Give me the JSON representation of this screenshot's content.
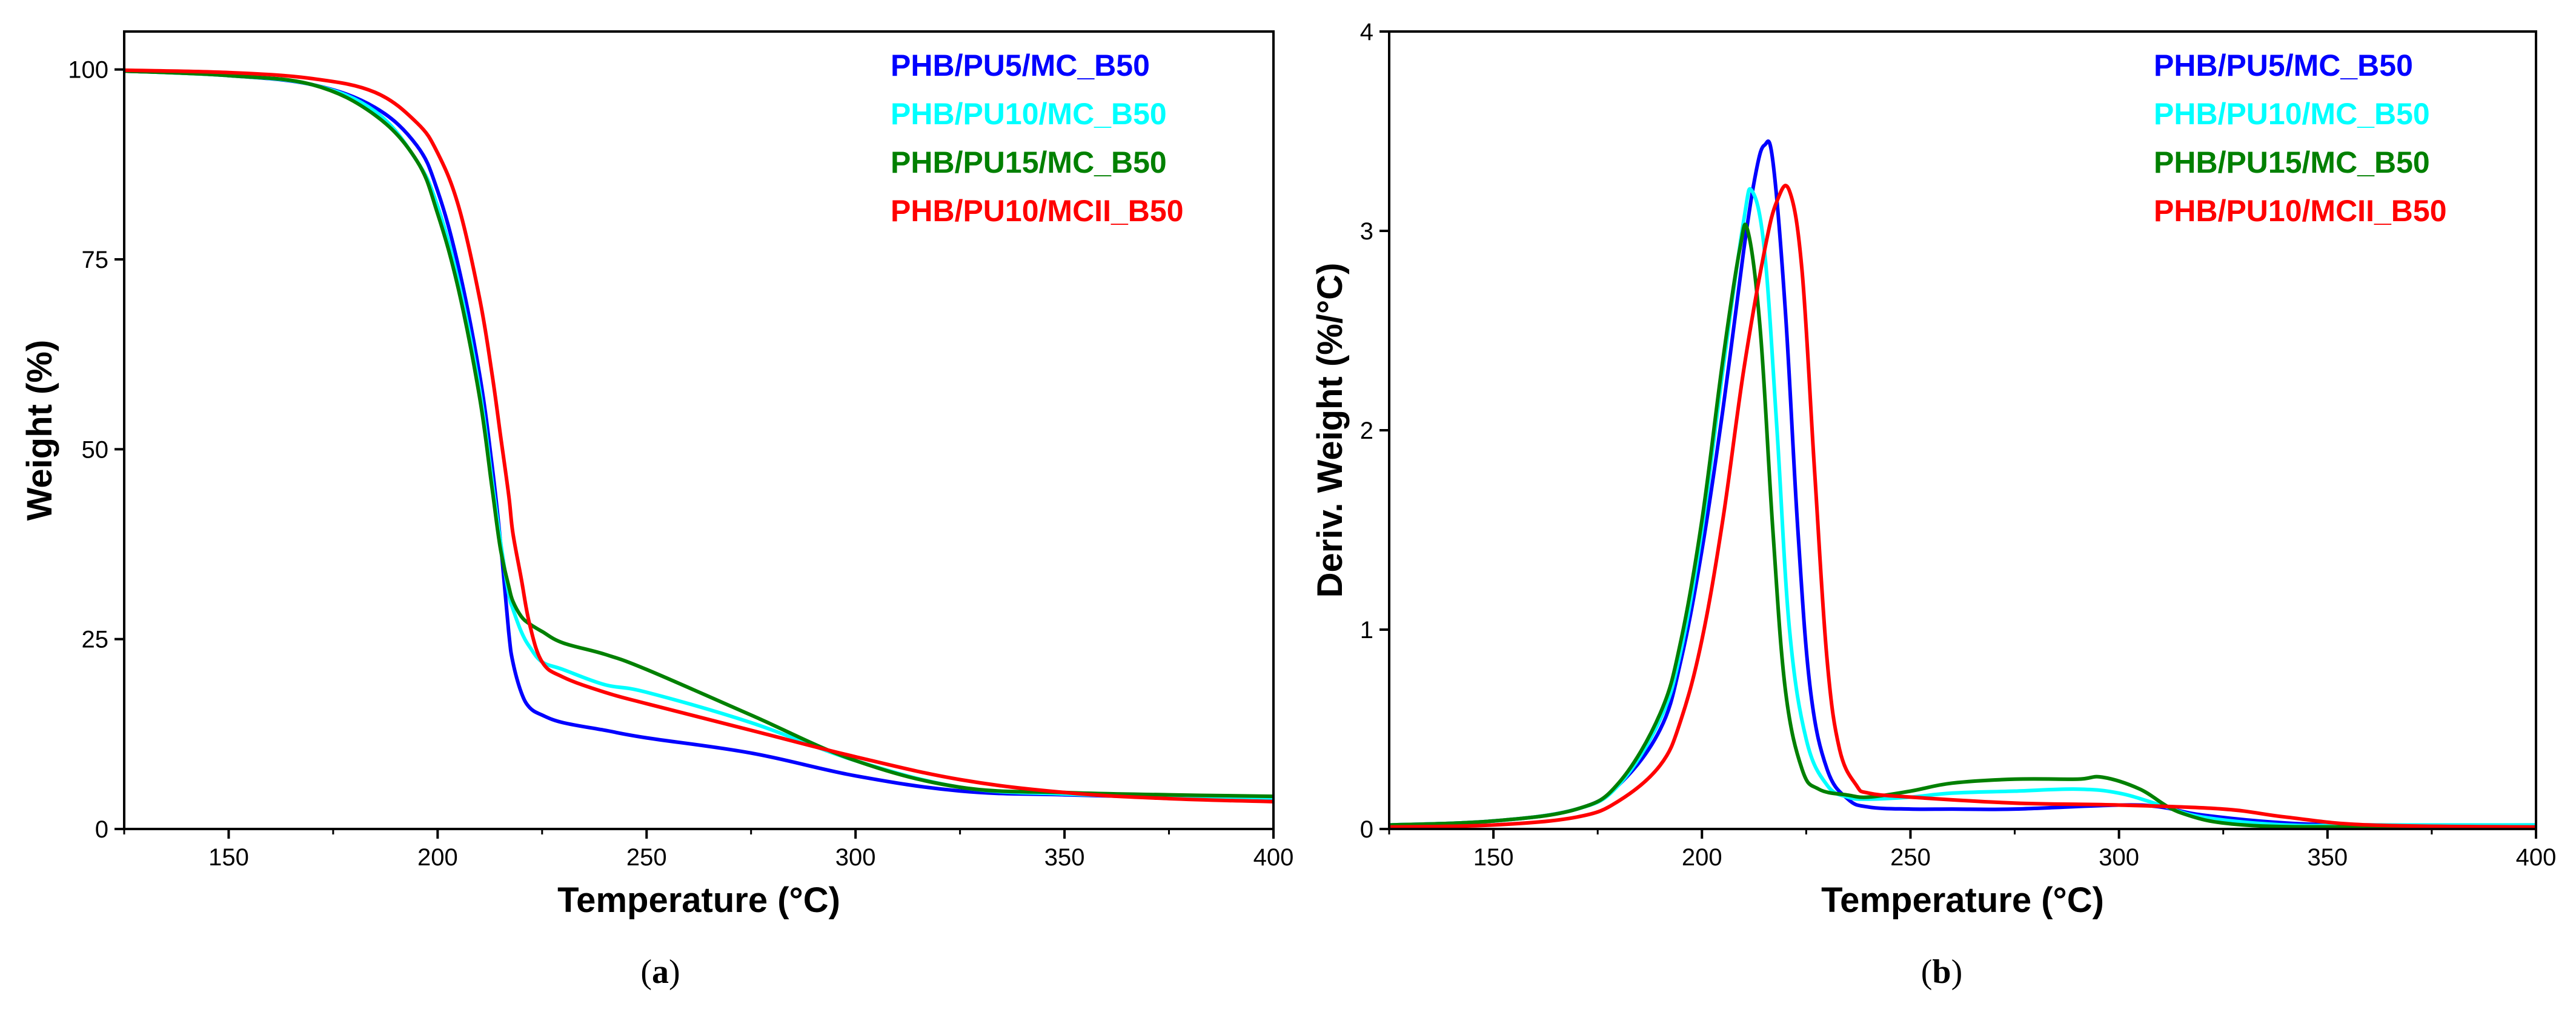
{
  "chart_data": [
    {
      "type": "line",
      "panel_label": {
        "open": "(",
        "letter": "a",
        "close": ")"
      },
      "title": "",
      "xlabel": "Temperature (°C)",
      "ylabel": "Weight (%)",
      "xlim": [
        125,
        400
      ],
      "ylim": [
        0,
        105
      ],
      "xticks": [
        150,
        200,
        250,
        300,
        350,
        400
      ],
      "yticks": [
        0,
        25,
        50,
        75,
        100
      ],
      "grid": false,
      "legend_position": "top-right",
      "series": [
        {
          "name": "PHB/PU5/MC_B50",
          "color": "#0000ff",
          "x": [
            125,
            150,
            170,
            185,
            195,
            200,
            205,
            210,
            213,
            215,
            217,
            218,
            220,
            222,
            225,
            230,
            240,
            250,
            275,
            300,
            325,
            350,
            375,
            400
          ],
          "y": [
            99.8,
            99.2,
            98,
            95,
            90,
            84,
            74,
            60,
            48,
            38,
            26,
            22,
            18,
            16,
            15,
            14,
            13,
            12,
            10,
            7,
            5,
            4.5,
            4.2,
            4
          ]
        },
        {
          "name": "PHB/PU10/MC_B50",
          "color": "#00ffff",
          "x": [
            125,
            150,
            170,
            185,
            195,
            200,
            205,
            210,
            213,
            215,
            217,
            218,
            220,
            222,
            225,
            230,
            240,
            250,
            275,
            300,
            325,
            350,
            375,
            400
          ],
          "y": [
            99.8,
            99.2,
            98,
            94.5,
            88,
            82,
            72,
            58,
            46,
            38,
            31,
            29,
            26,
            24,
            22,
            21,
            19,
            18,
            14,
            9,
            5.5,
            4.6,
            4.3,
            4.1
          ]
        },
        {
          "name": "PHB/PU15/MC_B50",
          "color": "#008000",
          "x": [
            125,
            150,
            170,
            185,
            195,
            200,
            205,
            210,
            213,
            215,
            217,
            218,
            220,
            222,
            225,
            230,
            240,
            250,
            275,
            300,
            325,
            350,
            375,
            400
          ],
          "y": [
            99.8,
            99.2,
            98,
            94,
            88,
            81,
            71,
            57,
            45,
            37,
            32,
            30,
            28,
            27,
            26,
            24.5,
            23,
            21,
            15,
            9,
            5.5,
            4.8,
            4.5,
            4.3
          ]
        },
        {
          "name": "PHB/PU10/MCII_B50",
          "color": "#ff0000",
          "x": [
            125,
            150,
            170,
            185,
            195,
            200,
            205,
            210,
            213,
            215,
            217,
            218,
            220,
            222,
            225,
            230,
            240,
            250,
            275,
            300,
            325,
            350,
            375,
            400
          ],
          "y": [
            99.9,
            99.6,
            98.8,
            97,
            93,
            89,
            82,
            70,
            60,
            52,
            44,
            39,
            33,
            27,
            22,
            20,
            18,
            16.5,
            13,
            9.5,
            6.5,
            4.8,
            4,
            3.6
          ]
        }
      ]
    },
    {
      "type": "line",
      "panel_label": {
        "open": "(",
        "letter": "b",
        "close": ")"
      },
      "title": "",
      "xlabel": "Temperature (°C)",
      "ylabel": "Deriv. Weight (%/°C)",
      "xlim": [
        125,
        400
      ],
      "ylim": [
        0,
        4
      ],
      "xticks": [
        150,
        200,
        250,
        300,
        350,
        400
      ],
      "yticks": [
        0,
        1,
        2,
        3,
        4
      ],
      "grid": false,
      "legend_position": "top-right",
      "series": [
        {
          "name": "PHB/PU5/MC_B50",
          "color": "#0000ff",
          "x": [
            125,
            150,
            170,
            180,
            190,
            195,
            200,
            205,
            210,
            213,
            215,
            217,
            220,
            223,
            226,
            230,
            235,
            240,
            250,
            260,
            275,
            300,
            310,
            320,
            340,
            360,
            400
          ],
          "y": [
            0.02,
            0.04,
            0.1,
            0.22,
            0.5,
            0.85,
            1.4,
            2.1,
            2.9,
            3.3,
            3.43,
            3.35,
            2.6,
            1.5,
            0.7,
            0.3,
            0.15,
            0.11,
            0.1,
            0.1,
            0.1,
            0.12,
            0.11,
            0.07,
            0.03,
            0.02,
            0.02
          ]
        },
        {
          "name": "PHB/PU10/MC_B50",
          "color": "#00ffff",
          "x": [
            125,
            150,
            170,
            180,
            190,
            195,
            200,
            205,
            210,
            212,
            215,
            218,
            221,
            225,
            230,
            235,
            240,
            250,
            260,
            275,
            290,
            300,
            310,
            320,
            340,
            360,
            400
          ],
          "y": [
            0.02,
            0.04,
            0.1,
            0.22,
            0.55,
            0.9,
            1.5,
            2.3,
            3.05,
            3.2,
            2.9,
            2.0,
            1.0,
            0.45,
            0.22,
            0.16,
            0.15,
            0.16,
            0.18,
            0.19,
            0.2,
            0.18,
            0.12,
            0.06,
            0.02,
            0.02,
            0.02
          ]
        },
        {
          "name": "PHB/PU15/MC_B50",
          "color": "#008000",
          "x": [
            125,
            150,
            170,
            180,
            190,
            195,
            200,
            205,
            209,
            211,
            214,
            217,
            220,
            224,
            228,
            235,
            240,
            250,
            260,
            275,
            290,
            296,
            305,
            315,
            330,
            360,
            400
          ],
          "y": [
            0.02,
            0.04,
            0.1,
            0.23,
            0.58,
            0.95,
            1.55,
            2.35,
            2.9,
            3.0,
            2.5,
            1.5,
            0.7,
            0.3,
            0.2,
            0.17,
            0.16,
            0.19,
            0.23,
            0.25,
            0.25,
            0.26,
            0.2,
            0.08,
            0.02,
            0.01,
            0.01
          ]
        },
        {
          "name": "PHB/PU10/MCII_B50",
          "color": "#ff0000",
          "x": [
            125,
            150,
            170,
            180,
            190,
            195,
            200,
            205,
            210,
            215,
            218,
            221,
            224,
            227,
            230,
            233,
            237,
            240,
            250,
            275,
            300,
            325,
            340,
            360,
            400
          ],
          "y": [
            0.01,
            0.02,
            0.06,
            0.14,
            0.32,
            0.55,
            0.95,
            1.55,
            2.3,
            2.9,
            3.15,
            3.2,
            2.8,
            1.8,
            0.85,
            0.4,
            0.22,
            0.18,
            0.16,
            0.13,
            0.12,
            0.1,
            0.06,
            0.02,
            0.01
          ]
        }
      ]
    }
  ]
}
